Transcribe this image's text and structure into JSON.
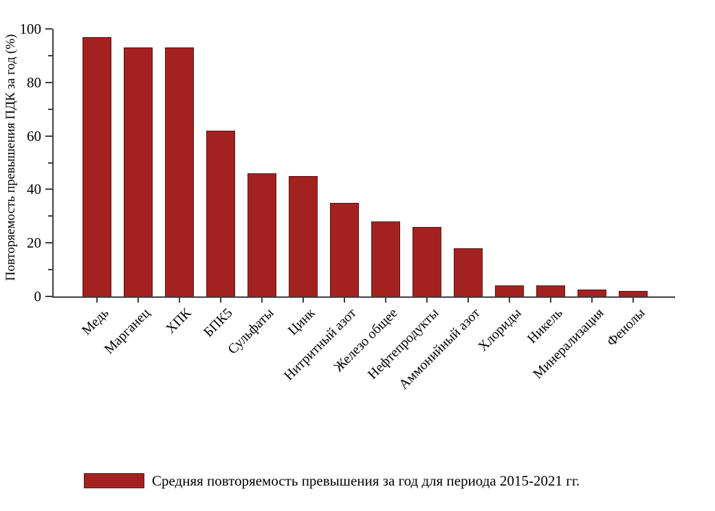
{
  "chart_data": {
    "type": "bar",
    "title": "",
    "xlabel": "",
    "ylabel": "Повторяемость превышения ПДК за год (%)",
    "ylim": [
      0,
      100
    ],
    "yticks": [
      0,
      20,
      40,
      60,
      80,
      100
    ],
    "minor_yticks": [
      10,
      30,
      50,
      70,
      90
    ],
    "grid": "off",
    "categories": [
      "Медь",
      "Марганец",
      "ХПК",
      "БПК5",
      "Сульфаты",
      "Цинк",
      "Нитритный азот",
      "Железо общее",
      "Нефтепродукты",
      "Аммонийный азот",
      "Хлориды",
      "Никель",
      "Минерализация",
      "Фенолы"
    ],
    "values": [
      97,
      93,
      93,
      62,
      46,
      45,
      35,
      28,
      26,
      18,
      4,
      4,
      2.5,
      2
    ],
    "bar_color": "#a32220",
    "bar_edge_color": "#5a1511",
    "axis_color": "#3d3d3d",
    "legend": {
      "position": "bottom",
      "label": "Средняя повторяемость превышения за год для периода 2015-2021 гг.",
      "swatch_color": "#a32220"
    }
  }
}
